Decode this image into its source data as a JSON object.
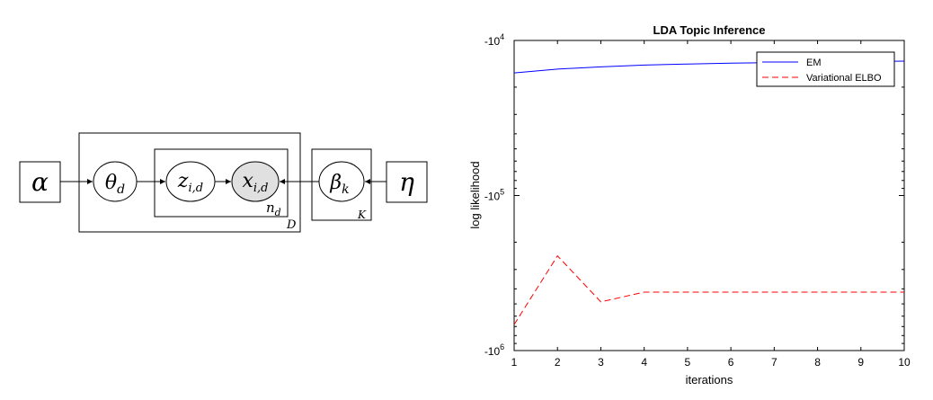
{
  "diagram": {
    "alpha": "α",
    "theta": {
      "base": "θ",
      "sub": "d"
    },
    "z": {
      "base": "z",
      "sub": "i,d"
    },
    "x": {
      "base": "x",
      "sub": "i,d"
    },
    "beta": {
      "base": "β",
      "sub": "k"
    },
    "eta": "η",
    "plate_n": {
      "base": "n",
      "sub": "d"
    },
    "plate_D": "D",
    "plate_K": "K",
    "observed_fill": "#e0e0e0"
  },
  "chart_data": {
    "type": "line",
    "title": "LDA Topic Inference",
    "xlabel": "iterations",
    "ylabel": "log likelihood",
    "y_scale": "log (negated)",
    "xlim": [
      1,
      10
    ],
    "ylim": [
      -1000000,
      -10000
    ],
    "x_ticks": [
      "1",
      "2",
      "3",
      "4",
      "5",
      "6",
      "7",
      "8",
      "9",
      "10"
    ],
    "y_ticks": [
      {
        "value": -10000,
        "base": "-10",
        "exp": "4"
      },
      {
        "value": -100000,
        "base": "-10",
        "exp": "5"
      },
      {
        "value": -1000000,
        "base": "-10",
        "exp": "6"
      }
    ],
    "legend_position": "top-right",
    "x": [
      1,
      2,
      3,
      4,
      5,
      6,
      7,
      8,
      9,
      10
    ],
    "series": [
      {
        "name": "EM",
        "color": "#0000ff",
        "style": "solid",
        "values": [
          -16200,
          -15300,
          -14800,
          -14400,
          -14200,
          -14000,
          -13900,
          -13800,
          -13700,
          -13600
        ]
      },
      {
        "name": "Variational ELBO",
        "color": "#ff0000",
        "style": "dashed",
        "values": [
          -680000,
          -245000,
          -485000,
          -420000,
          -420000,
          -420000,
          -420000,
          -420000,
          -420000,
          -420000
        ]
      }
    ]
  }
}
